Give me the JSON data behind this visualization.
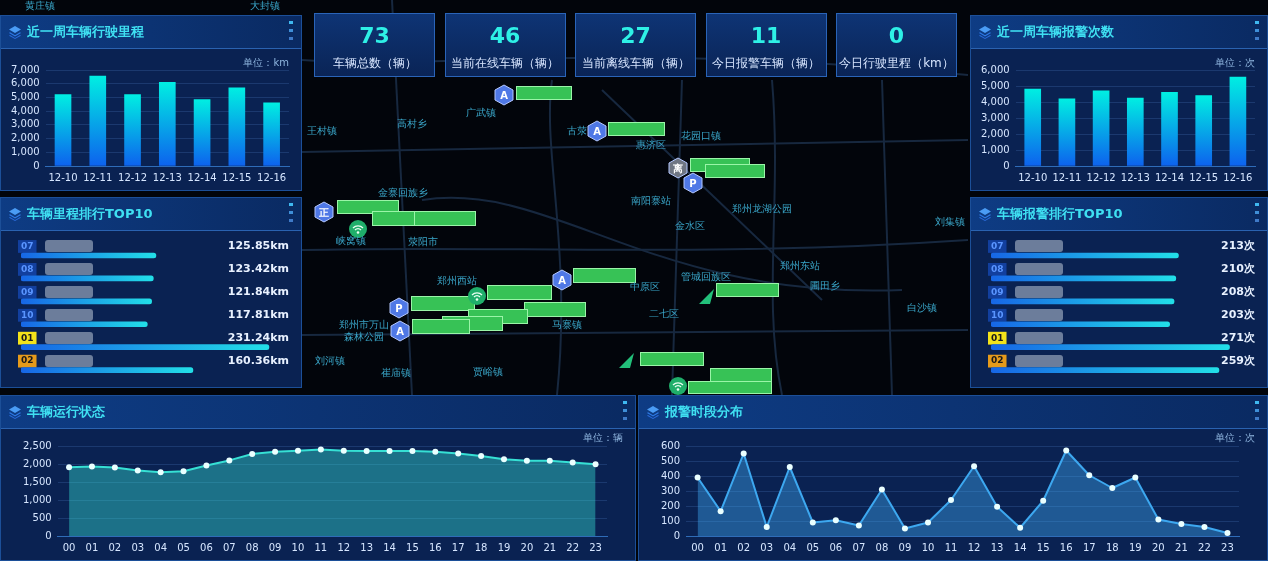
{
  "chart_data": [
    {
      "type": "bar",
      "title": "近一周车辆行驶里程",
      "annotations": [
        "单位：km"
      ],
      "categories": [
        "12-10",
        "12-11",
        "12-12",
        "12-13",
        "12-14",
        "12-15",
        "12-16"
      ],
      "values": [
        5200,
        6550,
        5200,
        6100,
        4850,
        5700,
        4600
      ],
      "color": "#00eee2",
      "ylim": [
        0,
        7000
      ],
      "yticks": [
        0,
        {
          "value": 1000,
          "label": "1,000"
        },
        {
          "value": 2000,
          "label": "2,000"
        },
        {
          "value": 3000,
          "label": "3,000"
        },
        {
          "value": 4000,
          "label": "4,000"
        },
        {
          "value": 5000,
          "label": "5,000"
        },
        {
          "value": 6000,
          "label": "6,000"
        },
        {
          "value": 7000,
          "label": "7,000"
        }
      ],
      "grid": "y"
    },
    {
      "type": "other",
      "categories": [
        "车辆总数（辆）",
        "当前在线车辆（辆）",
        "当前离线车辆（辆）",
        "今日报警车辆（辆）",
        "今日行驶里程（km）"
      ],
      "values": [
        73,
        46,
        27,
        11,
        0
      ],
      "data_labels": true
    },
    {
      "type": "bar",
      "title": "近一周车辆报警次数",
      "annotations": [
        "单位：次"
      ],
      "categories": [
        "12-10",
        "12-11",
        "12-12",
        "12-13",
        "12-14",
        "12-15",
        "12-16"
      ],
      "values": [
        4800,
        4200,
        4700,
        4250,
        4600,
        4400,
        5550
      ],
      "color": "#00eee2",
      "ylim": [
        0,
        6000
      ],
      "yticks": [
        0,
        {
          "value": 1000,
          "label": "1,000"
        },
        {
          "value": 2000,
          "label": "2,000"
        },
        {
          "value": 3000,
          "label": "3,000"
        },
        {
          "value": 4000,
          "label": "4,000"
        },
        {
          "value": 5000,
          "label": "5,000"
        },
        {
          "value": 6000,
          "label": "6,000"
        }
      ],
      "grid": "y"
    },
    {
      "type": "bar",
      "orientation": "horizontal",
      "title": "车辆里程排行TOP10",
      "categories": [
        "07",
        "08",
        "09",
        "10",
        "01",
        "02"
      ],
      "values": [
        125.85,
        123.42,
        121.84,
        117.81,
        231.24,
        160.36
      ],
      "value_labels": [
        "125.85km",
        "123.42km",
        "121.84km",
        "117.81km",
        "231.24km",
        "160.36km"
      ],
      "color": "#22dfe8"
    },
    {
      "type": "other",
      "annotations": [
        "黄庄镇",
        "大封镇",
        "王村镇",
        "高村乡",
        "广武镇",
        "古荥",
        "惠济区",
        "花园口镇",
        "金寨回族乡",
        "南阳寨站",
        "郑州龙湖公园",
        "金水区",
        "刘集镇",
        "峡窝镇",
        "荥阳市",
        "郑州西站",
        "中原区",
        "管城回族区",
        "郑州东站",
        "圃田乡",
        "白沙镇",
        "二七区",
        "郑州市万山森林公园",
        "马寨镇",
        "刘河镇",
        "崔庙镇",
        "贾峪镇",
        "A",
        "A",
        "离",
        "P",
        "正",
        "A",
        "P",
        "A"
      ]
    },
    {
      "type": "bar",
      "orientation": "horizontal",
      "title": "车辆报警排行TOP10",
      "categories": [
        "07",
        "08",
        "09",
        "10",
        "01",
        "02"
      ],
      "values": [
        213,
        210,
        208,
        203,
        271,
        259
      ],
      "value_labels": [
        "213次",
        "210次",
        "208次",
        "203次",
        "271次",
        "259次"
      ],
      "color": "#22dfe8"
    },
    {
      "type": "area",
      "title": "车辆运行状态",
      "annotations": [
        "单位：辆"
      ],
      "categories": [
        "00",
        "01",
        "02",
        "03",
        "04",
        "05",
        "06",
        "07",
        "08",
        "09",
        "10",
        "11",
        "12",
        "13",
        "14",
        "15",
        "16",
        "17",
        "18",
        "19",
        "20",
        "21",
        "22",
        "23"
      ],
      "values": [
        1910,
        1930,
        1900,
        1820,
        1770,
        1800,
        1960,
        2100,
        2280,
        2340,
        2370,
        2400,
        2370,
        2360,
        2360,
        2360,
        2340,
        2290,
        2220,
        2130,
        2090,
        2090,
        2040,
        1990
      ],
      "color": "#36e0d4",
      "marker": "circle",
      "ylim": [
        0,
        2500
      ],
      "yticks": [
        0,
        500,
        {
          "value": 1000,
          "label": "1,000"
        },
        {
          "value": 1500,
          "label": "1,500"
        },
        {
          "value": 2000,
          "label": "2,000"
        },
        {
          "value": 2500,
          "label": "2,500"
        }
      ],
      "grid": "y"
    },
    {
      "type": "area",
      "title": "报警时段分布",
      "annotations": [
        "单位：次"
      ],
      "categories": [
        "00",
        "01",
        "02",
        "03",
        "04",
        "05",
        "06",
        "07",
        "08",
        "09",
        "10",
        "11",
        "12",
        "13",
        "14",
        "15",
        "16",
        "17",
        "18",
        "19",
        "20",
        "21",
        "22",
        "23"
      ],
      "values": [
        390,
        165,
        550,
        60,
        460,
        90,
        105,
        70,
        310,
        50,
        90,
        240,
        465,
        195,
        55,
        235,
        570,
        405,
        320,
        390,
        110,
        80,
        60,
        20
      ],
      "color": "#3da8f0",
      "marker": "circle",
      "ylim": [
        0,
        600
      ],
      "yticks": [
        0,
        100,
        200,
        300,
        400,
        500,
        600
      ],
      "grid": "y"
    }
  ]
}
